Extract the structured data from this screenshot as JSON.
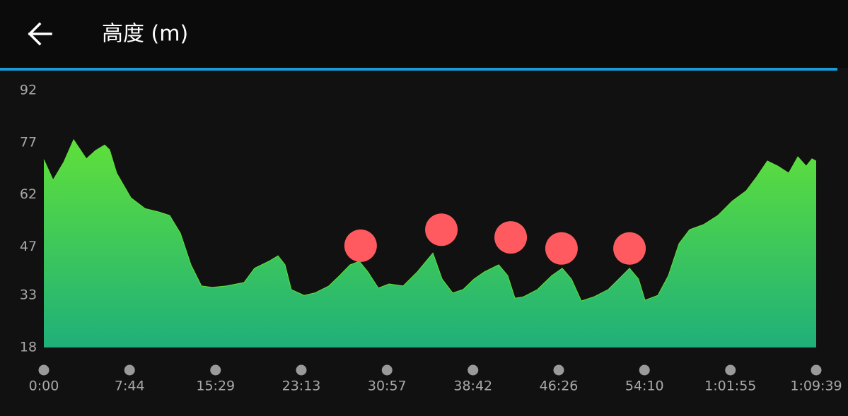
{
  "header": {
    "title": "高度 (m)"
  },
  "chart_data": {
    "type": "area",
    "x": [
      0,
      50,
      107,
      161,
      230,
      279,
      329,
      356,
      394,
      471,
      547,
      624,
      681,
      739,
      796,
      853,
      911,
      987,
      1083,
      1140,
      1217,
      1267,
      1305,
      1339,
      1408,
      1466,
      1542,
      1600,
      1657,
      1707,
      1753,
      1810,
      1868,
      1944,
      2021,
      2105,
      2155,
      2212,
      2269,
      2327,
      2384,
      2461,
      2510,
      2549,
      2595,
      2671,
      2748,
      2805,
      2855,
      2908,
      2977,
      3054,
      3111,
      3169,
      3218,
      3253,
      3322,
      3379,
      3437,
      3494,
      3570,
      3647,
      3724,
      3800,
      3858,
      3915,
      3972,
      4030,
      4080,
      4125,
      4156,
      4179
    ],
    "values": [
      72.1,
      66.2,
      71.3,
      77.8,
      72.3,
      74.7,
      76.3,
      74.9,
      68.2,
      61.1,
      58.0,
      57.0,
      56.0,
      50.9,
      41.8,
      35.7,
      35.3,
      35.7,
      36.7,
      40.8,
      42.8,
      44.4,
      41.8,
      34.7,
      33.0,
      33.7,
      35.7,
      38.7,
      41.8,
      42.8,
      39.8,
      35.1,
      36.3,
      35.7,
      39.8,
      45.2,
      37.7,
      33.7,
      34.7,
      37.7,
      39.8,
      41.8,
      38.7,
      32.2,
      32.6,
      34.7,
      38.7,
      40.8,
      37.7,
      31.4,
      32.6,
      34.7,
      37.7,
      40.8,
      37.7,
      31.6,
      33.0,
      38.7,
      47.9,
      51.9,
      53.4,
      56.0,
      60.1,
      63.1,
      67.2,
      71.7,
      70.2,
      68.2,
      72.9,
      70.2,
      72.3,
      71.7
    ],
    "gradient": [
      "#5fe03a",
      "#1fb07a"
    ],
    "markers": {
      "color": "#ff5a5f",
      "x": [
        1714,
        2151,
        2526,
        2801,
        3169
      ],
      "values": [
        47.3,
        51.9,
        49.7,
        46.5,
        46.5
      ]
    },
    "xlim": [
      0,
      4179
    ],
    "xticks": [
      {
        "value": 0,
        "label": "0:00"
      },
      {
        "value": 464,
        "label": "7:44"
      },
      {
        "value": 929,
        "label": "15:29"
      },
      {
        "value": 1393,
        "label": "23:13"
      },
      {
        "value": 1857,
        "label": "30:57"
      },
      {
        "value": 2322,
        "label": "38:42"
      },
      {
        "value": 2786,
        "label": "46:26"
      },
      {
        "value": 3250,
        "label": "54:10"
      },
      {
        "value": 3715,
        "label": "1:01:55"
      },
      {
        "value": 4179,
        "label": "1:09:39"
      }
    ],
    "ylim": [
      18,
      92
    ],
    "yticks": [
      18,
      33,
      47,
      62,
      77,
      92
    ]
  }
}
